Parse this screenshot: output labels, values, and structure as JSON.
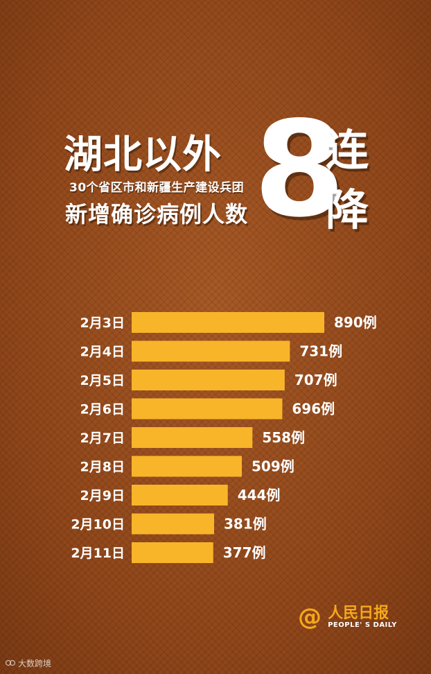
{
  "header": {
    "title_line1": "湖北以外",
    "title_line2": "30个省区市和新疆生产建设兵团",
    "title_line3": "新增确诊病例人数",
    "big_number": "8",
    "side_char1": "连",
    "side_char2": "降"
  },
  "chart_data": {
    "type": "bar",
    "orientation": "horizontal",
    "categories": [
      "2月3日",
      "2月4日",
      "2月5日",
      "2月6日",
      "2月7日",
      "2月8日",
      "2月9日",
      "2月10日",
      "2月11日"
    ],
    "values": [
      890,
      731,
      707,
      696,
      558,
      509,
      444,
      381,
      377
    ],
    "value_labels": [
      "890例",
      "731例",
      "707例",
      "696例",
      "558例",
      "509例",
      "444例",
      "381例",
      "377例"
    ],
    "bar_color": "#f8b52a",
    "grid": false,
    "legend": "none"
  },
  "logo": {
    "symbol": "@",
    "name_cn": "人民日报",
    "name_en": "PEOPLE' S DAILY",
    "color": "#f5a81c"
  },
  "watermark": {
    "text": "大数跨境"
  }
}
